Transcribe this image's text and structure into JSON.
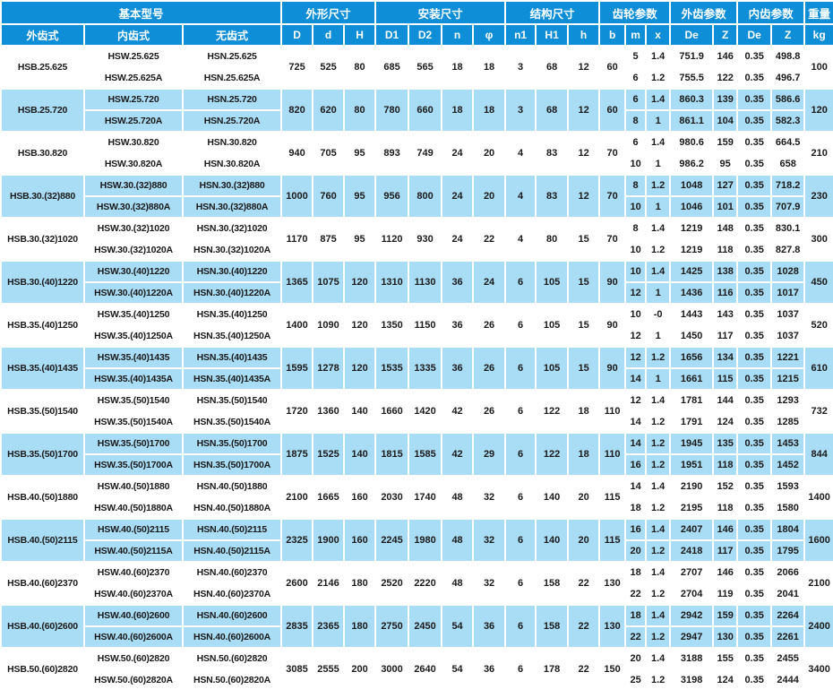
{
  "colors": {
    "header_bg": "#0d8ed6",
    "alt_row_bg": "#a9dcf5",
    "header_text": "#ffffff",
    "body_text": "#1a1a1a"
  },
  "table": {
    "header_groups": [
      {
        "label": "基本型号",
        "span": 3
      },
      {
        "label": "外形尺寸",
        "span": 3
      },
      {
        "label": "安装尺寸",
        "span": 4
      },
      {
        "label": "结构尺寸",
        "span": 3
      },
      {
        "label": "齿轮参数",
        "span": 3
      },
      {
        "label": "外齿参数",
        "span": 2
      },
      {
        "label": "内齿参数",
        "span": 2
      },
      {
        "label": "重量",
        "span": 1
      }
    ],
    "columns": [
      "外齿式",
      "内齿式",
      "无齿式",
      "D",
      "d",
      "H",
      "D1",
      "D2",
      "n",
      "φ",
      "n1",
      "H1",
      "h",
      "b",
      "m",
      "x",
      "De",
      "Z",
      "De",
      "Z",
      "kg"
    ],
    "groups": [
      {
        "ext_model": "HSB.25.625",
        "int_models": [
          "HSW.25.625",
          "HSW.25.625A"
        ],
        "plain_models": [
          "HSN.25.625",
          "HSN.25.625A"
        ],
        "merged": {
          "D": "725",
          "d": "525",
          "H": "80",
          "D1": "685",
          "D2": "565",
          "n": "18",
          "phi": "18",
          "n1": "3",
          "H1": "68",
          "h": "12",
          "b": "60"
        },
        "gear_rows": [
          [
            "5",
            "1.4",
            "751.9",
            "146",
            "0.35",
            "498.8"
          ],
          [
            "6",
            "1.2",
            "755.5",
            "122",
            "0.35",
            "496.7"
          ]
        ],
        "kg": "100"
      },
      {
        "ext_model": "HSB.25.720",
        "int_models": [
          "HSW.25.720",
          "HSW.25.720A"
        ],
        "plain_models": [
          "HSN.25.720",
          "HSN.25.720A"
        ],
        "merged": {
          "D": "820",
          "d": "620",
          "H": "80",
          "D1": "780",
          "D2": "660",
          "n": "18",
          "phi": "18",
          "n1": "3",
          "H1": "68",
          "h": "12",
          "b": "60"
        },
        "gear_rows": [
          [
            "6",
            "1.4",
            "860.3",
            "139",
            "0.35",
            "586.6"
          ],
          [
            "8",
            "1",
            "861.1",
            "104",
            "0.35",
            "582.3"
          ]
        ],
        "kg": "120"
      },
      {
        "ext_model": "HSB.30.820",
        "int_models": [
          "HSW.30.820",
          "HSW.30.820A"
        ],
        "plain_models": [
          "HSN.30.820",
          "HSN.30.820A"
        ],
        "merged": {
          "D": "940",
          "d": "705",
          "H": "95",
          "D1": "893",
          "D2": "749",
          "n": "24",
          "phi": "20",
          "n1": "4",
          "H1": "83",
          "h": "12",
          "b": "70"
        },
        "gear_rows": [
          [
            "6",
            "1.4",
            "980.6",
            "159",
            "0.35",
            "664.5"
          ],
          [
            "10",
            "1",
            "986.2",
            "95",
            "0.35",
            "658"
          ]
        ],
        "kg": "210"
      },
      {
        "ext_model": "HSB.30.(32)880",
        "int_models": [
          "HSW.30.(32)880",
          "HSW.30.(32)880A"
        ],
        "plain_models": [
          "HSN.30.(32)880",
          "HSN.30.(32)880A"
        ],
        "merged": {
          "D": "1000",
          "d": "760",
          "H": "95",
          "D1": "956",
          "D2": "800",
          "n": "24",
          "phi": "20",
          "n1": "4",
          "H1": "83",
          "h": "12",
          "b": "70"
        },
        "gear_rows": [
          [
            "8",
            "1.2",
            "1048",
            "127",
            "0.35",
            "718.2"
          ],
          [
            "10",
            "1",
            "1046",
            "101",
            "0.35",
            "707.9"
          ]
        ],
        "kg": "230"
      },
      {
        "ext_model": "HSB.30.(32)1020",
        "int_models": [
          "HSW.30.(32)1020",
          "HSW.30.(32)1020A"
        ],
        "plain_models": [
          "HSN.30.(32)1020",
          "HSN.30.(32)1020A"
        ],
        "merged": {
          "D": "1170",
          "d": "875",
          "H": "95",
          "D1": "1120",
          "D2": "930",
          "n": "24",
          "phi": "22",
          "n1": "4",
          "H1": "80",
          "h": "15",
          "b": "70"
        },
        "gear_rows": [
          [
            "8",
            "1.4",
            "1219",
            "148",
            "0.35",
            "830.1"
          ],
          [
            "10",
            "1.2",
            "1219",
            "118",
            "0.35",
            "827.8"
          ]
        ],
        "kg": "300"
      },
      {
        "ext_model": "HSB.30.(40)1220",
        "int_models": [
          "HSW.30.(40)1220",
          "HSW.30.(40)1220A"
        ],
        "plain_models": [
          "HSN.30.(40)1220",
          "HSN.30.(40)1220A"
        ],
        "merged": {
          "D": "1365",
          "d": "1075",
          "H": "120",
          "D1": "1310",
          "D2": "1130",
          "n": "36",
          "phi": "24",
          "n1": "6",
          "H1": "105",
          "h": "15",
          "b": "90"
        },
        "gear_rows": [
          [
            "10",
            "1.4",
            "1425",
            "138",
            "0.35",
            "1028"
          ],
          [
            "12",
            "1",
            "1436",
            "116",
            "0.35",
            "1017"
          ]
        ],
        "kg": "450"
      },
      {
        "ext_model": "HSB.35.(40)1250",
        "int_models": [
          "HSW.35.(40)1250",
          "HSW.35.(40)1250A"
        ],
        "plain_models": [
          "HSN.35.(40)1250",
          "HSN.35.(40)1250A"
        ],
        "merged": {
          "D": "1400",
          "d": "1090",
          "H": "120",
          "D1": "1350",
          "D2": "1150",
          "n": "36",
          "phi": "26",
          "n1": "6",
          "H1": "105",
          "h": "15",
          "b": "90"
        },
        "gear_rows": [
          [
            "10",
            "-0",
            "1443",
            "143",
            "0.35",
            "1037"
          ],
          [
            "12",
            "1",
            "1450",
            "117",
            "0.35",
            "1037"
          ]
        ],
        "kg": "520"
      },
      {
        "ext_model": "HSB.35.(40)1435",
        "int_models": [
          "HSW.35.(40)1435",
          "HSW.35.(40)1435A"
        ],
        "plain_models": [
          "HSN.35.(40)1435",
          "HSN.35.(40)1435A"
        ],
        "merged": {
          "D": "1595",
          "d": "1278",
          "H": "120",
          "D1": "1535",
          "D2": "1335",
          "n": "36",
          "phi": "26",
          "n1": "6",
          "H1": "105",
          "h": "15",
          "b": "90"
        },
        "gear_rows": [
          [
            "12",
            "1.2",
            "1656",
            "134",
            "0.35",
            "1221"
          ],
          [
            "14",
            "1",
            "1661",
            "115",
            "0.35",
            "1215"
          ]
        ],
        "kg": "610"
      },
      {
        "ext_model": "HSB.35.(50)1540",
        "int_models": [
          "HSW.35.(50)1540",
          "HSW.35.(50)1540A"
        ],
        "plain_models": [
          "HSN.35.(50)1540",
          "HSN.35.(50)1540A"
        ],
        "merged": {
          "D": "1720",
          "d": "1360",
          "H": "140",
          "D1": "1660",
          "D2": "1420",
          "n": "42",
          "phi": "26",
          "n1": "6",
          "H1": "122",
          "h": "18",
          "b": "110"
        },
        "gear_rows": [
          [
            "12",
            "1.4",
            "1781",
            "144",
            "0.35",
            "1293"
          ],
          [
            "14",
            "1.2",
            "1791",
            "124",
            "0.35",
            "1285"
          ]
        ],
        "kg": "732"
      },
      {
        "ext_model": "HSB.35.(50)1700",
        "int_models": [
          "HSW.35.(50)1700",
          "HSW.35.(50)1700A"
        ],
        "plain_models": [
          "HSN.35.(50)1700",
          "HSN.35.(50)1700A"
        ],
        "merged": {
          "D": "1875",
          "d": "1525",
          "H": "140",
          "D1": "1815",
          "D2": "1585",
          "n": "42",
          "phi": "29",
          "n1": "6",
          "H1": "122",
          "h": "18",
          "b": "110"
        },
        "gear_rows": [
          [
            "14",
            "1.2",
            "1945",
            "135",
            "0.35",
            "1453"
          ],
          [
            "16",
            "1.2",
            "1951",
            "118",
            "0.35",
            "1452"
          ]
        ],
        "kg": "844"
      },
      {
        "ext_model": "HSB.40.(50)1880",
        "int_models": [
          "HSW.40.(50)1880",
          "HSW.40.(50)1880A"
        ],
        "plain_models": [
          "HSN.40.(50)1880",
          "HSN.40.(50)1880A"
        ],
        "merged": {
          "D": "2100",
          "d": "1665",
          "H": "160",
          "D1": "2030",
          "D2": "1740",
          "n": "48",
          "phi": "32",
          "n1": "6",
          "H1": "140",
          "h": "20",
          "b": "115"
        },
        "gear_rows": [
          [
            "14",
            "1.4",
            "2190",
            "152",
            "0.35",
            "1593"
          ],
          [
            "18",
            "1.2",
            "2195",
            "118",
            "0.35",
            "1580"
          ]
        ],
        "kg": "1400"
      },
      {
        "ext_model": "HSB.40.(50)2115",
        "int_models": [
          "HSW.40.(50)2115",
          "HSW.40.(50)2115A"
        ],
        "plain_models": [
          "HSN.40.(50)2115",
          "HSN.40.(50)2115A"
        ],
        "merged": {
          "D": "2325",
          "d": "1900",
          "H": "160",
          "D1": "2245",
          "D2": "1980",
          "n": "48",
          "phi": "32",
          "n1": "6",
          "H1": "140",
          "h": "20",
          "b": "115"
        },
        "gear_rows": [
          [
            "16",
            "1.4",
            "2407",
            "146",
            "0.35",
            "1804"
          ],
          [
            "20",
            "1.2",
            "2418",
            "117",
            "0.35",
            "1795"
          ]
        ],
        "kg": "1600"
      },
      {
        "ext_model": "HSB.40.(60)2370",
        "int_models": [
          "HSW.40.(60)2370",
          "HSW.40.(60)2370A"
        ],
        "plain_models": [
          "HSN.40.(60)2370",
          "HSN.40.(60)2370A"
        ],
        "merged": {
          "D": "2600",
          "d": "2146",
          "H": "180",
          "D1": "2520",
          "D2": "2220",
          "n": "48",
          "phi": "32",
          "n1": "6",
          "H1": "158",
          "h": "22",
          "b": "130"
        },
        "gear_rows": [
          [
            "18",
            "1.4",
            "2707",
            "146",
            "0.35",
            "2066"
          ],
          [
            "22",
            "1.2",
            "2704",
            "119",
            "0.35",
            "2041"
          ]
        ],
        "kg": "2100"
      },
      {
        "ext_model": "HSB.40.(60)2600",
        "int_models": [
          "HSW.40.(60)2600",
          "HSW.40.(60)2600A"
        ],
        "plain_models": [
          "HSN.40.(60)2600",
          "HSN.40.(60)2600A"
        ],
        "merged": {
          "D": "2835",
          "d": "2365",
          "H": "180",
          "D1": "2750",
          "D2": "2450",
          "n": "54",
          "phi": "36",
          "n1": "6",
          "H1": "158",
          "h": "22",
          "b": "130"
        },
        "gear_rows": [
          [
            "18",
            "1.4",
            "2942",
            "159",
            "0.35",
            "2264"
          ],
          [
            "22",
            "1.2",
            "2947",
            "130",
            "0.35",
            "2261"
          ]
        ],
        "kg": "2400"
      },
      {
        "ext_model": "HSB.50.(60)2820",
        "int_models": [
          "HSW.50.(60)2820",
          "HSW.50.(60)2820A"
        ],
        "plain_models": [
          "HSN.50.(60)2820",
          "HSN.50.(60)2820A"
        ],
        "merged": {
          "D": "3085",
          "d": "2555",
          "H": "200",
          "D1": "3000",
          "D2": "2640",
          "n": "54",
          "phi": "36",
          "n1": "6",
          "H1": "178",
          "h": "22",
          "b": "150"
        },
        "gear_rows": [
          [
            "20",
            "1.4",
            "3188",
            "155",
            "0.35",
            "2455"
          ],
          [
            "25",
            "1.2",
            "3198",
            "124",
            "0.35",
            "2444"
          ]
        ],
        "kg": "3400"
      }
    ]
  }
}
